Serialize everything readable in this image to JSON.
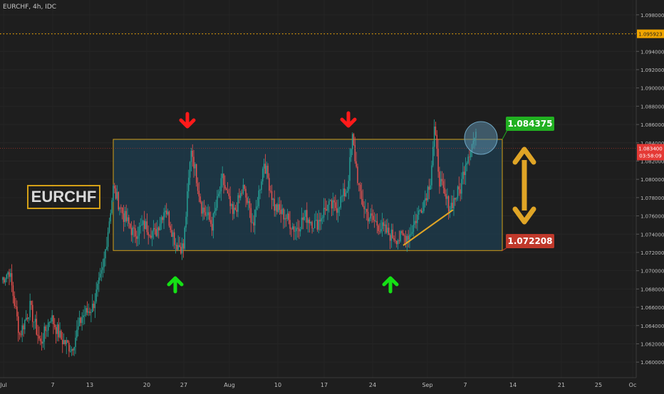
{
  "symbol_label": "EURCHF, 4h, IDC",
  "annotation_title": "EURCHF",
  "colors": {
    "background": "#1e1e1e",
    "up": "#26a69a",
    "down": "#ef5350",
    "range_fill": "#1d3a4a",
    "range_border": "#d4a017",
    "top_label": "#21b021",
    "bottom_label": "#c0392b",
    "arrow_red": "#ff1a1a",
    "arrow_green": "#15e015",
    "double_arrow": "#e0a526",
    "dotted_level": "#f0a500"
  },
  "chart_data": {
    "type": "candlestick",
    "ylim": [
      1.059,
      1.099
    ],
    "y_ticks": [
      "1.098000",
      "1.096000",
      "1.094000",
      "1.092000",
      "1.090000",
      "1.088000",
      "1.086000",
      "1.084000",
      "1.082000",
      "1.080000",
      "1.078000",
      "1.076000",
      "1.074000",
      "1.072000",
      "1.070000",
      "1.068000",
      "1.066000",
      "1.064000",
      "1.062000",
      "1.060000"
    ],
    "x_ticks": [
      "Jul",
      "7",
      "13",
      "20",
      "27",
      "Aug",
      "10",
      "17",
      "24",
      "Sep",
      "7",
      "14",
      "21",
      "25",
      "Oc"
    ],
    "current_price": "1.083400",
    "countdown": "03:58:09",
    "dotted_level": {
      "label": "1.095923",
      "value": 1.095923
    },
    "range": {
      "top": 1.084375,
      "bottom": 1.072208,
      "top_label": "1.084375",
      "bottom_label": "1.072208"
    },
    "anchors": [
      [
        0,
        1.069
      ],
      [
        6,
        1.07
      ],
      [
        14,
        1.063
      ],
      [
        22,
        1.066
      ],
      [
        30,
        1.062
      ],
      [
        38,
        1.065
      ],
      [
        46,
        1.0625
      ],
      [
        54,
        1.0615
      ],
      [
        62,
        1.065
      ],
      [
        70,
        1.066
      ],
      [
        78,
        1.07
      ],
      [
        86,
        1.079
      ],
      [
        94,
        1.076
      ],
      [
        102,
        1.074
      ],
      [
        110,
        1.075
      ],
      [
        118,
        1.074
      ],
      [
        126,
        1.077
      ],
      [
        134,
        1.073
      ],
      [
        140,
        1.0725
      ],
      [
        146,
        1.0835
      ],
      [
        154,
        1.077
      ],
      [
        162,
        1.075
      ],
      [
        170,
        1.08
      ],
      [
        178,
        1.076
      ],
      [
        186,
        1.079
      ],
      [
        194,
        1.075
      ],
      [
        202,
        1.082
      ],
      [
        210,
        1.077
      ],
      [
        218,
        1.076
      ],
      [
        226,
        1.0745
      ],
      [
        234,
        1.076
      ],
      [
        242,
        1.075
      ],
      [
        250,
        1.077
      ],
      [
        258,
        1.077
      ],
      [
        266,
        1.079
      ],
      [
        270,
        1.0845
      ],
      [
        276,
        1.078
      ],
      [
        282,
        1.076
      ],
      [
        290,
        1.075
      ],
      [
        298,
        1.074
      ],
      [
        306,
        1.0735
      ],
      [
        314,
        1.074
      ],
      [
        320,
        1.076
      ],
      [
        326,
        1.078
      ],
      [
        330,
        1.08
      ],
      [
        333,
        1.0855
      ],
      [
        337,
        1.08
      ],
      [
        341,
        1.078
      ],
      [
        345,
        1.077
      ],
      [
        349,
        1.078
      ],
      [
        353,
        1.079
      ],
      [
        357,
        1.082
      ],
      [
        361,
        1.0835
      ],
      [
        364,
        1.0845
      ]
    ],
    "red_arrows": [
      [
        1,
        1.0866
      ],
      [
        1,
        1.0866
      ]
    ],
    "green_arrows": [
      [
        1,
        1.0684
      ],
      [
        1,
        1.0684
      ]
    ]
  }
}
